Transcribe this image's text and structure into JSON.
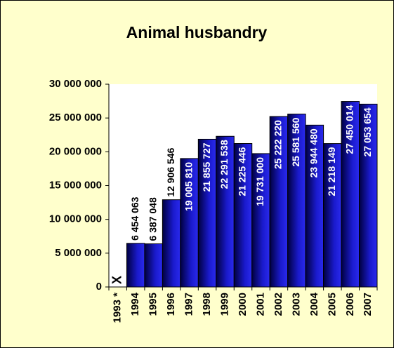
{
  "chart_data": {
    "type": "bar",
    "title": "Animal husbandry",
    "categories": [
      "1993 *",
      "1994",
      "1995",
      "1996",
      "1997",
      "1998",
      "1999",
      "2000",
      "2001",
      "2002",
      "2003",
      "2004",
      "2005",
      "2006",
      "2007"
    ],
    "values": [
      null,
      6454063,
      6387048,
      12906546,
      19005810,
      21855727,
      22291538,
      21225446,
      19731000,
      25222220,
      25581560,
      23944480,
      21218149,
      27450014,
      27053654
    ],
    "value_labels": [
      "X",
      "6 454 063",
      "6 387 048",
      "12 906 546",
      "19 005 810",
      "21 855 727",
      "22 291 538",
      "21 225 446",
      "19 731 000",
      "25 222 220",
      "25 581 560",
      "23 944 480",
      "21 218 149",
      "27 450 014",
      "27 053 654"
    ],
    "color": "#0000aa",
    "ylim": [
      0,
      30000000
    ],
    "yticks": [
      {
        "value": 0,
        "label": "0"
      },
      {
        "value": 5000000,
        "label": "5 000 000"
      },
      {
        "value": 10000000,
        "label": "10 000 000"
      },
      {
        "value": 15000000,
        "label": "15 000 000"
      },
      {
        "value": 20000000,
        "label": "20 000 000"
      },
      {
        "value": 25000000,
        "label": "25 000 000"
      },
      {
        "value": 30000000,
        "label": "30 000 000"
      }
    ],
    "grid": false
  }
}
